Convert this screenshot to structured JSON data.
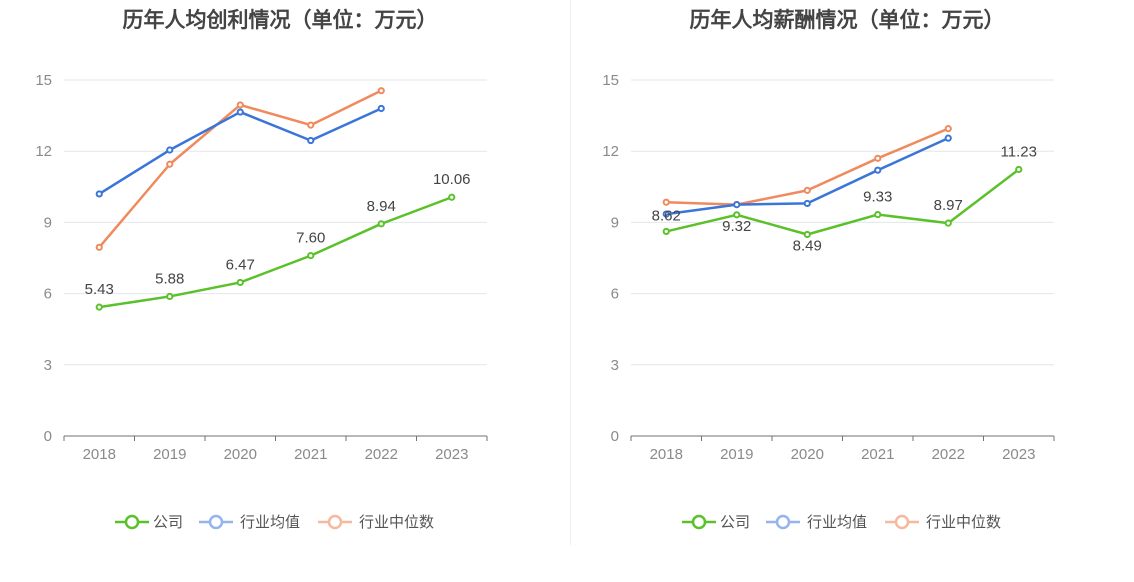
{
  "chart_data": [
    {
      "type": "line",
      "title": "历年人均创利情况（单位：万元）",
      "categories": [
        "2018",
        "2019",
        "2020",
        "2021",
        "2022",
        "2023"
      ],
      "ylim": [
        0,
        15
      ],
      "yticks": [
        "0",
        "3",
        "6",
        "9",
        "12",
        "15"
      ],
      "grid": true,
      "legend_position": "bottom",
      "series": [
        {
          "name": "公司",
          "color": "#5bc12b",
          "values": [
            5.43,
            5.88,
            6.47,
            7.6,
            8.94,
            10.06
          ],
          "labels": [
            "5.43",
            "5.88",
            "6.47",
            "7.60",
            "8.94",
            "10.06"
          ]
        },
        {
          "name": "行业均值",
          "color": "#3a75d9",
          "values": [
            10.2,
            12.05,
            13.65,
            12.45,
            13.8,
            null
          ]
        },
        {
          "name": "行业中位数",
          "color": "#f08a5d",
          "values": [
            7.95,
            11.45,
            13.95,
            13.1,
            14.55,
            null
          ]
        }
      ]
    },
    {
      "type": "line",
      "title": "历年人均薪酬情况（单位：万元）",
      "categories": [
        "2018",
        "2019",
        "2020",
        "2021",
        "2022",
        "2023"
      ],
      "ylim": [
        0,
        15
      ],
      "yticks": [
        "0",
        "3",
        "6",
        "9",
        "12",
        "15"
      ],
      "grid": true,
      "legend_position": "bottom",
      "series": [
        {
          "name": "公司",
          "color": "#5bc12b",
          "values": [
            8.62,
            9.32,
            8.49,
            9.33,
            8.97,
            11.23
          ],
          "labels": [
            "8.62",
            "9.32",
            "8.49",
            "9.33",
            "8.97",
            "11.23"
          ]
        },
        {
          "name": "行业均值",
          "color": "#3a75d9",
          "values": [
            9.35,
            9.75,
            9.8,
            11.2,
            12.55,
            null
          ]
        },
        {
          "name": "行业中位数",
          "color": "#f08a5d",
          "values": [
            9.85,
            9.75,
            10.35,
            11.7,
            12.95,
            null
          ]
        }
      ]
    }
  ],
  "legend_colors": {
    "公司": "#5bc12b",
    "行业均值": "#94b4ee",
    "行业中位数": "#f6b9a0"
  }
}
